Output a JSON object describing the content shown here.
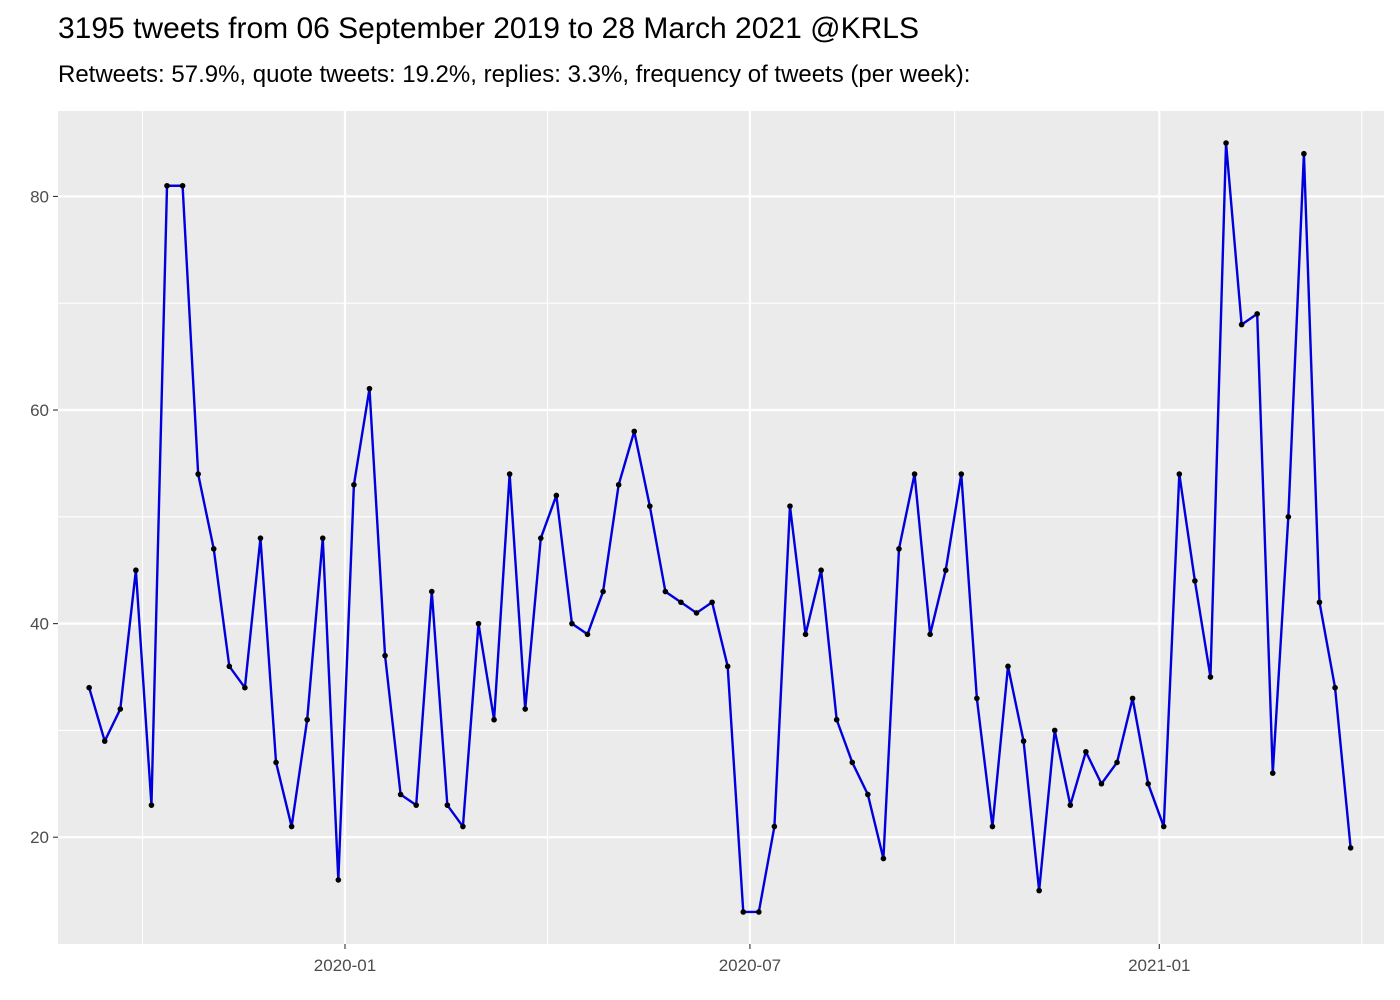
{
  "title": "3195 tweets from 06 September 2019 to 28 March 2021 @KRLS",
  "subtitle": "Retweets: 57.9%, quote tweets: 19.2%, replies: 3.3%, frequency of tweets (per week):",
  "colors": {
    "panel": "#ebebeb",
    "grid": "#ffffff",
    "line": "#0000dd",
    "point": "#000000",
    "tick_text": "#4d4d4d"
  },
  "chart_data": {
    "type": "line",
    "title": "3195 tweets from 06 September 2019 to 28 March 2021 @KRLS",
    "subtitle": "Retweets: 57.9%, quote tweets: 19.2%, replies: 3.3%, frequency of tweets (per week):",
    "xlabel": "",
    "ylabel": "",
    "x_type": "date",
    "xlim": [
      "2019-08-25",
      "2021-04-12"
    ],
    "ylim": [
      10,
      88
    ],
    "x_ticks": [
      "2020-01-01",
      "2020-07-01",
      "2021-01-01"
    ],
    "x_tick_labels": [
      "2020-01",
      "2020-07",
      "2021-01"
    ],
    "y_ticks": [
      20,
      40,
      60,
      80
    ],
    "y_tick_labels": [
      "20",
      "40",
      "60",
      "80"
    ],
    "grid": true,
    "legend": "none",
    "series": [
      {
        "x": [
          "2019-09-08",
          "2019-09-15",
          "2019-09-22",
          "2019-09-29",
          "2019-10-06",
          "2019-10-13",
          "2019-10-20",
          "2019-10-27",
          "2019-11-03",
          "2019-11-10",
          "2019-11-17",
          "2019-11-24",
          "2019-12-01",
          "2019-12-08",
          "2019-12-15",
          "2019-12-22",
          "2019-12-29",
          "2020-01-05",
          "2020-01-12",
          "2020-01-19",
          "2020-01-26",
          "2020-02-02",
          "2020-02-09",
          "2020-02-16",
          "2020-02-23",
          "2020-03-01",
          "2020-03-08",
          "2020-03-15",
          "2020-03-22",
          "2020-03-29",
          "2020-04-05",
          "2020-04-12",
          "2020-04-19",
          "2020-04-26",
          "2020-05-03",
          "2020-05-10",
          "2020-05-17",
          "2020-05-24",
          "2020-05-31",
          "2020-06-07",
          "2020-06-14",
          "2020-06-21",
          "2020-06-28",
          "2020-07-05",
          "2020-07-12",
          "2020-07-19",
          "2020-07-26",
          "2020-08-02",
          "2020-08-09",
          "2020-08-16",
          "2020-08-23",
          "2020-08-30",
          "2020-09-06",
          "2020-09-13",
          "2020-09-20",
          "2020-09-27",
          "2020-10-04",
          "2020-10-11",
          "2020-10-18",
          "2020-10-25",
          "2020-11-01",
          "2020-11-08",
          "2020-11-15",
          "2020-11-22",
          "2020-11-29",
          "2020-12-06",
          "2020-12-13",
          "2020-12-20",
          "2020-12-27",
          "2021-01-03",
          "2021-01-10",
          "2021-01-17",
          "2021-01-24",
          "2021-01-31",
          "2021-02-07",
          "2021-02-14",
          "2021-02-21",
          "2021-02-28",
          "2021-03-07",
          "2021-03-14",
          "2021-03-21",
          "2021-03-28"
        ],
        "y": [
          34,
          29,
          32,
          45,
          23,
          81,
          81,
          54,
          47,
          36,
          34,
          48,
          27,
          21,
          31,
          48,
          16,
          53,
          62,
          37,
          24,
          23,
          43,
          23,
          21,
          40,
          31,
          54,
          32,
          48,
          52,
          40,
          39,
          43,
          53,
          58,
          51,
          43,
          42,
          41,
          42,
          36,
          13,
          13,
          21,
          51,
          39,
          45,
          31,
          27,
          24,
          18,
          47,
          54,
          39,
          45,
          54,
          33,
          21,
          36,
          29,
          15,
          30,
          23,
          28,
          25,
          27,
          33,
          25,
          21,
          54,
          44,
          35,
          85,
          68,
          69,
          26,
          50,
          84,
          42,
          34,
          19
        ]
      }
    ]
  }
}
